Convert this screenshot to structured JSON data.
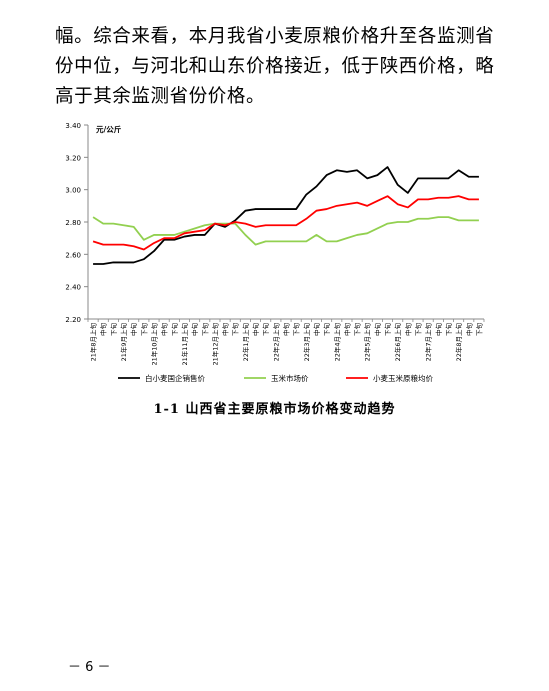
{
  "document": {
    "paragraph": "幅。综合来看，本月我省小麦原粮价格升至各监测省份中位，与河北和山东价格接近，低于陕西价格，略高于其余监测省份价格。",
    "figure_caption": "1-1 山西省主要原粮市场价格变动趋势",
    "page_number": "－ 6 －"
  },
  "chart_data": {
    "type": "line",
    "ylabel": "元/公斤",
    "ylim": [
      2.2,
      3.4
    ],
    "yticks": [
      "2.20",
      "2.40",
      "2.60",
      "2.80",
      "3.00",
      "3.20",
      "3.40"
    ],
    "grid": false,
    "legend_position": "bottom",
    "x": [
      "21年8月上旬",
      "中旬",
      "下旬",
      "21年9月上旬",
      "中旬",
      "下旬",
      "21年10月上旬",
      "中旬",
      "下旬",
      "21年11月上旬",
      "中旬",
      "下旬",
      "21年12月上旬",
      "中旬",
      "下旬",
      "22年1月上旬",
      "中旬",
      "下旬",
      "22年2月上旬",
      "中旬",
      "下旬",
      "22年3月上旬",
      "中旬",
      "下旬",
      "22年4月上旬",
      "中旬",
      "下旬",
      "22年5月上旬",
      "中旬",
      "下旬",
      "22年6月上旬",
      "中旬",
      "下旬",
      "22年7月上旬",
      "中旬",
      "下旬",
      "22年8月上旬",
      "中旬",
      "下旬"
    ],
    "series": [
      {
        "name": "白小麦国企销售价",
        "color": "#000000",
        "values": [
          2.54,
          2.54,
          2.55,
          2.55,
          2.55,
          2.57,
          2.62,
          2.69,
          2.69,
          2.71,
          2.72,
          2.72,
          2.79,
          2.77,
          2.81,
          2.87,
          2.88,
          2.88,
          2.88,
          2.88,
          2.88,
          2.97,
          3.02,
          3.09,
          3.12,
          3.11,
          3.12,
          3.07,
          3.09,
          3.14,
          3.03,
          2.98,
          3.07,
          3.07,
          3.07,
          3.07,
          3.12,
          3.08,
          3.08
        ]
      },
      {
        "name": "玉米市场价",
        "color": "#92d050",
        "values": [
          2.83,
          2.79,
          2.79,
          2.78,
          2.77,
          2.69,
          2.72,
          2.72,
          2.72,
          2.74,
          2.76,
          2.78,
          2.79,
          2.79,
          2.79,
          2.72,
          2.66,
          2.68,
          2.68,
          2.68,
          2.68,
          2.68,
          2.72,
          2.68,
          2.68,
          2.7,
          2.72,
          2.73,
          2.76,
          2.79,
          2.8,
          2.8,
          2.82,
          2.82,
          2.83,
          2.83,
          2.81,
          2.81,
          2.81
        ]
      },
      {
        "name": "小麦玉米原粮均价",
        "color": "#ff0000",
        "values": [
          2.68,
          2.66,
          2.66,
          2.66,
          2.65,
          2.63,
          2.67,
          2.7,
          2.7,
          2.73,
          2.74,
          2.75,
          2.79,
          2.78,
          2.8,
          2.79,
          2.77,
          2.78,
          2.78,
          2.78,
          2.78,
          2.82,
          2.87,
          2.88,
          2.9,
          2.91,
          2.92,
          2.9,
          2.93,
          2.96,
          2.91,
          2.89,
          2.94,
          2.94,
          2.95,
          2.95,
          2.96,
          2.94,
          2.94
        ]
      }
    ]
  }
}
